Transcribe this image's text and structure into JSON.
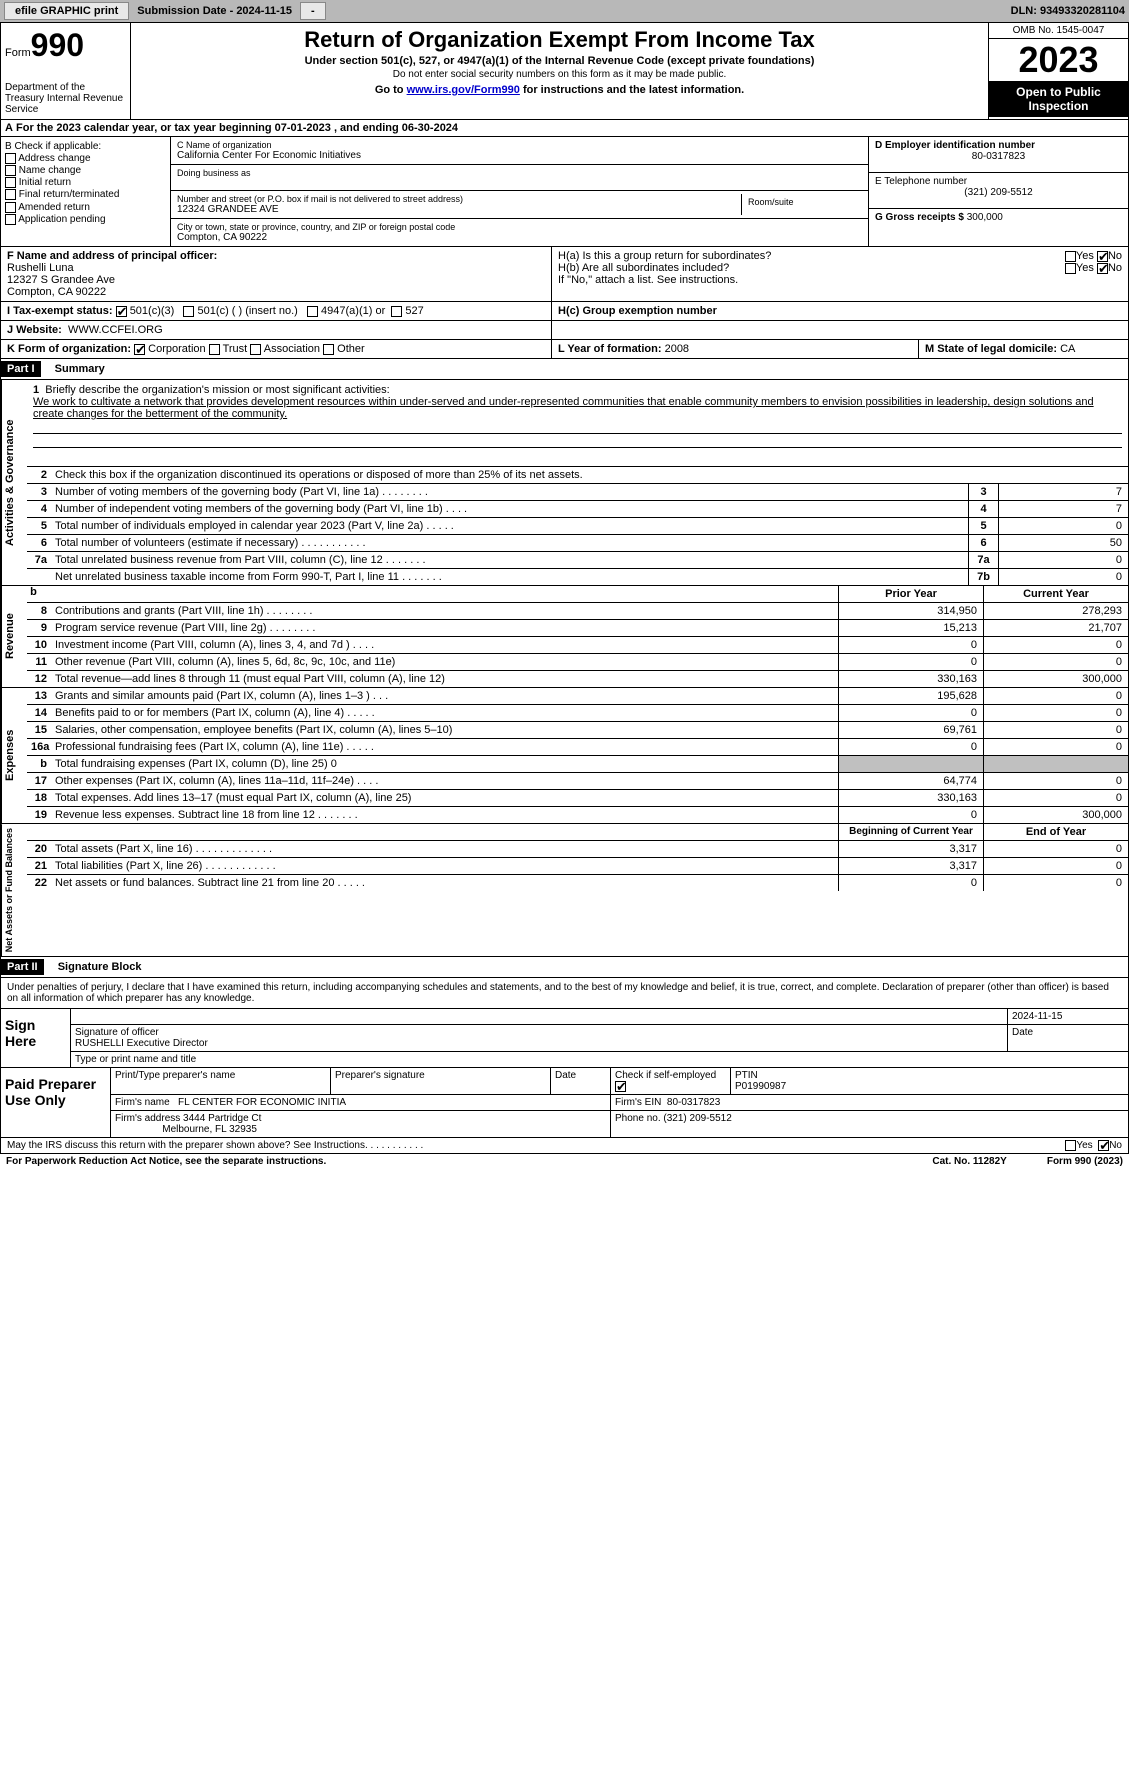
{
  "topbar": {
    "efile": "efile GRAPHIC print",
    "submission": "Submission Date - 2024-11-15",
    "dln": "DLN: 93493320281104"
  },
  "header": {
    "form": "Form",
    "formnum": "990",
    "dept": "Department of the Treasury Internal Revenue Service",
    "title": "Return of Organization Exempt From Income Tax",
    "sub1": "Under section 501(c), 527, or 4947(a)(1) of the Internal Revenue Code (except private foundations)",
    "sub2": "Do not enter social security numbers on this form as it may be made public.",
    "sub3_a": "Go to ",
    "sub3_link": "www.irs.gov/Form990",
    "sub3_b": " for instructions and the latest information.",
    "omb": "OMB No. 1545-0047",
    "year": "2023",
    "open": "Open to Public Inspection"
  },
  "A": "For the 2023 calendar year, or tax year beginning 07-01-2023   , and ending 06-30-2024",
  "B": {
    "hdr": "B Check if applicable:",
    "items": [
      "Address change",
      "Name change",
      "Initial return",
      "Final return/terminated",
      "Amended return",
      "Application pending"
    ]
  },
  "C": {
    "name_lbl": "C Name of organization",
    "name": "California Center For Economic Initiatives",
    "dba_lbl": "Doing business as",
    "dba": "",
    "street_lbl": "Number and street (or P.O. box if mail is not delivered to street address)",
    "street": "12324 GRANDEE AVE",
    "room_lbl": "Room/suite",
    "city_lbl": "City or town, state or province, country, and ZIP or foreign postal code",
    "city": "Compton, CA  90222"
  },
  "D": {
    "lbl": "D Employer identification number",
    "val": "80-0317823"
  },
  "E": {
    "lbl": "E Telephone number",
    "val": "(321) 209-5512"
  },
  "G": {
    "lbl": "G Gross receipts $",
    "val": "300,000"
  },
  "F": {
    "lbl": "F  Name and address of principal officer:",
    "name": "Rushelli Luna",
    "addr1": "12327 S Grandee Ave",
    "addr2": "Compton, CA  90222"
  },
  "H": {
    "a": "H(a)  Is this a group return for subordinates?",
    "b": "H(b)  Are all subordinates included?",
    "b2": "If \"No,\" attach a list. See instructions.",
    "c": "H(c)  Group exemption number",
    "yes": "Yes",
    "no": "No"
  },
  "I": {
    "lbl": "I  Tax-exempt status:",
    "o1": "501(c)(3)",
    "o2": "501(c) (  ) (insert no.)",
    "o3": "4947(a)(1) or",
    "o4": "527"
  },
  "J": {
    "lbl": "J  Website:",
    "val": "WWW.CCFEI.ORG"
  },
  "K": {
    "lbl": "K Form of organization:",
    "o1": "Corporation",
    "o2": "Trust",
    "o3": "Association",
    "o4": "Other"
  },
  "L": {
    "lbl": "L Year of formation:",
    "val": "2008"
  },
  "M": {
    "lbl": "M State of legal domicile:",
    "val": "CA"
  },
  "part1": {
    "hdr": "Part I",
    "title": "Summary"
  },
  "summary": {
    "q1_lbl": "Briefly describe the organization's mission or most significant activities:",
    "q1": "We work to cultivate a network that provides development resources within under-served and under-represented communities that enable community members to envision possibilities in leadership, design solutions and create changes for the betterment of the community.",
    "q2": "Check this box       if the organization discontinued its operations or disposed of more than 25% of its net assets.",
    "lines_gov": [
      {
        "n": "3",
        "t": "Number of voting members of the governing body (Part VI, line 1a)   .   .   .   .   .   .   .   .",
        "box": "3",
        "v": "7"
      },
      {
        "n": "4",
        "t": "Number of independent voting members of the governing body (Part VI, line 1b)   .   .   .   .",
        "box": "4",
        "v": "7"
      },
      {
        "n": "5",
        "t": "Total number of individuals employed in calendar year 2023 (Part V, line 2a)   .   .   .   .   .",
        "box": "5",
        "v": "0"
      },
      {
        "n": "6",
        "t": "Total number of volunteers (estimate if necessary)   .   .   .   .   .   .   .   .   .   .   .",
        "box": "6",
        "v": "50"
      },
      {
        "n": "7a",
        "t": "Total unrelated business revenue from Part VIII, column (C), line 12   .   .   .   .   .   .   .",
        "box": "7a",
        "v": "0"
      },
      {
        "n": "",
        "t": "Net unrelated business taxable income from Form 990-T, Part I, line 11   .   .   .   .   .   .   .",
        "box": "7b",
        "v": "0"
      }
    ],
    "col_prior": "Prior Year",
    "col_curr": "Current Year",
    "rev": [
      {
        "n": "8",
        "t": "Contributions and grants (Part VIII, line 1h)   .   .   .   .   .   .   .   .",
        "p": "314,950",
        "c": "278,293"
      },
      {
        "n": "9",
        "t": "Program service revenue (Part VIII, line 2g)   .   .   .   .   .   .   .   .",
        "p": "15,213",
        "c": "21,707"
      },
      {
        "n": "10",
        "t": "Investment income (Part VIII, column (A), lines 3, 4, and 7d )   .   .   .   .",
        "p": "0",
        "c": "0"
      },
      {
        "n": "11",
        "t": "Other revenue (Part VIII, column (A), lines 5, 6d, 8c, 9c, 10c, and 11e)",
        "p": "0",
        "c": "0"
      },
      {
        "n": "12",
        "t": "Total revenue—add lines 8 through 11 (must equal Part VIII, column (A), line 12)",
        "p": "330,163",
        "c": "300,000"
      }
    ],
    "exp": [
      {
        "n": "13",
        "t": "Grants and similar amounts paid (Part IX, column (A), lines 1–3 )   .   .   .",
        "p": "195,628",
        "c": "0"
      },
      {
        "n": "14",
        "t": "Benefits paid to or for members (Part IX, column (A), line 4)   .   .   .   .   .",
        "p": "0",
        "c": "0"
      },
      {
        "n": "15",
        "t": "Salaries, other compensation, employee benefits (Part IX, column (A), lines 5–10)",
        "p": "69,761",
        "c": "0"
      },
      {
        "n": "16a",
        "t": "Professional fundraising fees (Part IX, column (A), line 11e)   .   .   .   .   .",
        "p": "0",
        "c": "0"
      },
      {
        "n": "b",
        "t": "Total fundraising expenses (Part IX, column (D), line 25) 0",
        "p": "gray",
        "c": "gray"
      },
      {
        "n": "17",
        "t": "Other expenses (Part IX, column (A), lines 11a–11d, 11f–24e)   .   .   .   .",
        "p": "64,774",
        "c": "0"
      },
      {
        "n": "18",
        "t": "Total expenses. Add lines 13–17 (must equal Part IX, column (A), line 25)",
        "p": "330,163",
        "c": "0"
      },
      {
        "n": "19",
        "t": "Revenue less expenses. Subtract line 18 from line 12   .   .   .   .   .   .   .",
        "p": "0",
        "c": "300,000"
      }
    ],
    "col_beg": "Beginning of Current Year",
    "col_end": "End of Year",
    "net": [
      {
        "n": "20",
        "t": "Total assets (Part X, line 16)   .   .   .   .   .   .   .   .   .   .   .   .   .",
        "p": "3,317",
        "c": "0"
      },
      {
        "n": "21",
        "t": "Total liabilities (Part X, line 26)   .   .   .   .   .   .   .   .   .   .   .   .",
        "p": "3,317",
        "c": "0"
      },
      {
        "n": "22",
        "t": "Net assets or fund balances. Subtract line 21 from line 20   .   .   .   .   .",
        "p": "0",
        "c": "0"
      }
    ],
    "vtab_gov": "Activities & Governance",
    "vtab_rev": "Revenue",
    "vtab_exp": "Expenses",
    "vtab_net": "Net Assets or Fund Balances"
  },
  "part2": {
    "hdr": "Part II",
    "title": "Signature Block"
  },
  "sig": {
    "intro": "Under penalties of perjury, I declare that I have examined this return, including accompanying schedules and statements, and to the best of my knowledge and belief, it is true, correct, and complete. Declaration of preparer (other than officer) is based on all information of which preparer has any knowledge.",
    "sign_here": "Sign Here",
    "sig_officer": "Signature of officer",
    "officer": "RUSHELLI  Executive Director",
    "type_name": "Type or print name and title",
    "date_lbl": "Date",
    "date": "2024-11-15"
  },
  "paid": {
    "hdr": "Paid Preparer Use Only",
    "pt_name": "Print/Type preparer's name",
    "pt_sig": "Preparer's signature",
    "date": "Date",
    "check": "Check        if self-employed",
    "ptin_lbl": "PTIN",
    "ptin": "P01990987",
    "firm_name_lbl": "Firm's name",
    "firm_name": "FL CENTER FOR ECONOMIC INITIA",
    "firm_ein_lbl": "Firm's EIN",
    "firm_ein": "80-0317823",
    "firm_addr_lbl": "Firm's address",
    "firm_addr1": "3444 Partridge Ct",
    "firm_addr2": "Melbourne, FL  32935",
    "phone_lbl": "Phone no.",
    "phone": "(321) 209-5512"
  },
  "footer": {
    "discuss": "May the IRS discuss this return with the preparer shown above? See Instructions.   .   .   .   .   .   .   .   .   .   .",
    "pra": "For Paperwork Reduction Act Notice, see the separate instructions.",
    "cat": "Cat. No. 11282Y",
    "form": "Form 990 (2023)"
  }
}
